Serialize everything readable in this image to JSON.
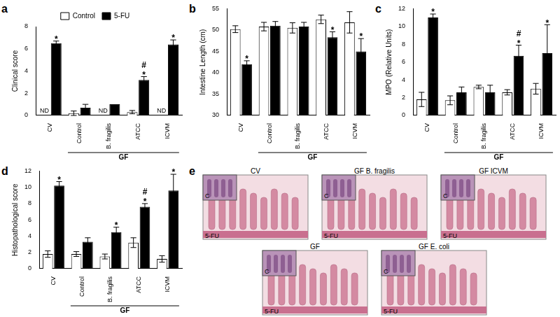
{
  "chart_data": [
    {
      "type": "bar",
      "panel": "a",
      "y_label": "Clinical score",
      "categories": [
        "CV",
        "Control",
        "B. fragilis",
        "ATCC",
        "ICVM"
      ],
      "category_groups": [
        {
          "label": "GF",
          "categories": [
            "Control",
            "B. fragilis",
            "ATCC",
            "ICVM"
          ]
        }
      ],
      "series": [
        {
          "name": "Control",
          "color": "#ffffff",
          "values": [
            null,
            0.2,
            null,
            0.3,
            null
          ],
          "errors": [
            null,
            0.2,
            null,
            0.15,
            null
          ],
          "value_labels": [
            "ND",
            null,
            "ND",
            null,
            "ND"
          ]
        },
        {
          "name": "5-FU",
          "color": "#000000",
          "values": [
            6.5,
            0.7,
            1.0,
            3.2,
            6.4
          ],
          "errors": [
            0.2,
            0.3,
            null,
            0.3,
            0.4
          ],
          "annotations": [
            [
              "*"
            ],
            null,
            null,
            [
              "#",
              "*"
            ],
            [
              "*"
            ]
          ]
        }
      ],
      "ylim": [
        0,
        8
      ],
      "yticks": [
        0,
        2,
        4,
        6,
        8
      ],
      "grid": false,
      "legend": "top"
    },
    {
      "type": "bar",
      "panel": "b",
      "y_label": "Intestine Length (cm)",
      "categories": [
        "CV",
        "Control",
        "B. fragilis",
        "ATCC",
        "ICVM"
      ],
      "category_groups": [
        {
          "label": "GF",
          "categories": [
            "Control",
            "B. fragilis",
            "ATCC",
            "ICVM"
          ]
        }
      ],
      "series": [
        {
          "name": "Control",
          "color": "#ffffff",
          "values": [
            50.2,
            50.8,
            50.5,
            52.5,
            51.8
          ],
          "errors": [
            0.8,
            1.0,
            1.2,
            1.0,
            2.5
          ]
        },
        {
          "name": "5-FU",
          "color": "#000000",
          "values": [
            42,
            51,
            50.8,
            48.3,
            45
          ],
          "errors": [
            0.8,
            1.0,
            1.0,
            1.3,
            3.0
          ],
          "annotations": [
            [
              "*"
            ],
            null,
            null,
            [
              "*"
            ],
            [
              "*"
            ]
          ]
        }
      ],
      "ylim": [
        30,
        55
      ],
      "yticks": [
        30,
        35,
        40,
        45,
        50,
        55
      ],
      "grid": false
    },
    {
      "type": "bar",
      "panel": "c",
      "y_label": "MPO (Relative Units)",
      "categories": [
        "CV",
        "Control",
        "B. fragilis",
        "ATCC",
        "ICVM"
      ],
      "category_groups": [
        {
          "label": "GF",
          "categories": [
            "Control",
            "B. fragilis",
            "ATCC",
            "ICVM"
          ]
        }
      ],
      "series": [
        {
          "name": "Control",
          "color": "#ffffff",
          "values": [
            1.8,
            1.7,
            3.2,
            2.6,
            3.0
          ],
          "errors": [
            0.8,
            0.5,
            0.2,
            0.3,
            0.6
          ]
        },
        {
          "name": "5-FU",
          "color": "#000000",
          "values": [
            11,
            2.6,
            2.6,
            6.7,
            7
          ],
          "errors": [
            0.4,
            0.6,
            0.8,
            1.2,
            3.2
          ],
          "annotations": [
            [
              "*"
            ],
            null,
            null,
            [
              "#",
              "*"
            ],
            [
              "*"
            ]
          ]
        }
      ],
      "ylim": [
        0,
        12
      ],
      "yticks": [
        0,
        2,
        4,
        6,
        8,
        10,
        12
      ],
      "grid": false
    },
    {
      "type": "bar",
      "panel": "d",
      "y_label": "Histopathological score",
      "categories": [
        "CV",
        "Control",
        "B. fragilis",
        "ATCC",
        "ICVM"
      ],
      "category_groups": [
        {
          "label": "GF",
          "categories": [
            "Control",
            "B. fragilis",
            "ATCC",
            "ICVM"
          ]
        }
      ],
      "series": [
        {
          "name": "Control",
          "color": "#ffffff",
          "values": [
            1.8,
            1.8,
            1.5,
            3.2,
            1.2
          ],
          "errors": [
            0.4,
            0.3,
            0.3,
            0.6,
            0.4
          ]
        },
        {
          "name": "5-FU",
          "color": "#000000",
          "values": [
            10.2,
            3.3,
            4.5,
            7.6,
            9.6
          ],
          "errors": [
            0.5,
            0.5,
            0.6,
            0.4,
            2.0
          ],
          "annotations": [
            [
              "*"
            ],
            null,
            [
              "*"
            ],
            [
              "#",
              "*"
            ],
            [
              "*"
            ]
          ]
        }
      ],
      "ylim": [
        0,
        12
      ],
      "yticks": [
        0,
        2,
        4,
        6,
        8,
        10,
        12
      ],
      "grid": false
    }
  ],
  "panel_e": {
    "panel": "e",
    "images": [
      {
        "title": "CV",
        "inset": "C",
        "label": "5-FU"
      },
      {
        "title": "GF B. fragilis",
        "inset": "C",
        "label": "5-FU"
      },
      {
        "title": "GF ICVM",
        "inset": "C",
        "label": "5-FU"
      },
      {
        "title": "GF",
        "inset": "C",
        "label": "5-FU"
      },
      {
        "title": "GF E. coli",
        "inset": "C",
        "label": "5-FU"
      }
    ]
  }
}
